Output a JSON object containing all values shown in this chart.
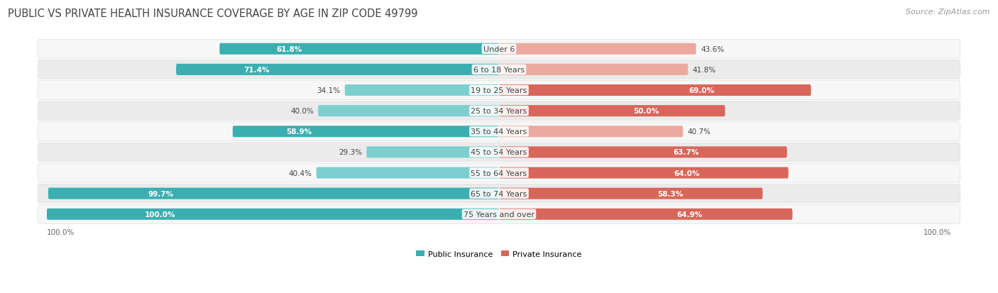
{
  "title": "PUBLIC VS PRIVATE HEALTH INSURANCE COVERAGE BY AGE IN ZIP CODE 49799",
  "source": "Source: ZipAtlas.com",
  "categories": [
    "Under 6",
    "6 to 18 Years",
    "19 to 25 Years",
    "25 to 34 Years",
    "35 to 44 Years",
    "45 to 54 Years",
    "55 to 64 Years",
    "65 to 74 Years",
    "75 Years and over"
  ],
  "public_values": [
    61.8,
    71.4,
    34.1,
    40.0,
    58.9,
    29.3,
    40.4,
    99.7,
    100.0
  ],
  "private_values": [
    43.6,
    41.8,
    69.0,
    50.0,
    40.7,
    63.7,
    64.0,
    58.3,
    64.9
  ],
  "public_color_dark": "#3AAFAF",
  "public_color_light": "#7DCFCF",
  "private_color_dark": "#D9665A",
  "private_color_light": "#EBA99F",
  "row_bg_odd": "#F7F7F7",
  "row_bg_even": "#EBEBEB",
  "row_border": "#DDDDDD",
  "title_color": "#444444",
  "source_color": "#999999",
  "label_color": "#666666",
  "value_color_dark": "#444444",
  "title_fontsize": 10.5,
  "source_fontsize": 8,
  "label_fontsize": 8,
  "value_fontsize": 7.5,
  "max_value": 100.0,
  "figsize": [
    14.06,
    4.14
  ],
  "dpi": 100
}
